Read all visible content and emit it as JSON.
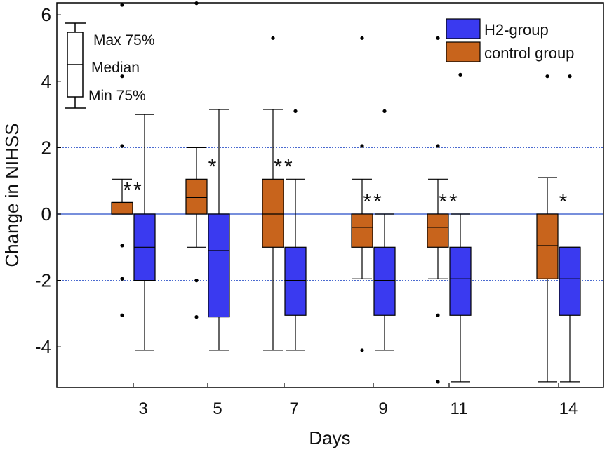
{
  "chart_data": {
    "type": "boxplot",
    "xlabel": "Days",
    "ylabel": "Change in NIHSS",
    "ylim": [
      -5.3,
      6.5
    ],
    "yticks": [
      6,
      4,
      2,
      0,
      -2,
      -4
    ],
    "ytick_labels": [
      "6",
      "4",
      "2",
      "0",
      "-2",
      "-4"
    ],
    "reference_lines": [
      2,
      0,
      -2
    ],
    "colors": {
      "control": "#c8641c",
      "h2": "#3a3af0",
      "ref_line": "#4a6ad0"
    },
    "legend": {
      "position": "top-right",
      "entries": [
        {
          "label": "H2-group",
          "series": "h2"
        },
        {
          "label": "control group",
          "series": "control"
        }
      ]
    },
    "box_key": {
      "max": "Max 75%",
      "median": "Median",
      "min": "Min 75%"
    },
    "groups": [
      {
        "day": "3",
        "significance": "**",
        "control": {
          "whisker_low": 0,
          "q1": 0,
          "median": 0.35,
          "q3": 0.35,
          "whisker_high": 1.05,
          "outliers": [
            6.3,
            4.15,
            2.05,
            -0.95,
            -1.95,
            -3.05
          ]
        },
        "h2": {
          "whisker_low": -4.1,
          "q1": -2.0,
          "median": -1.0,
          "q3": 0,
          "whisker_high": 3.0,
          "outliers": []
        }
      },
      {
        "day": "5",
        "significance": "*",
        "control": {
          "whisker_low": -1.0,
          "q1": 0,
          "median": 0.5,
          "q3": 1.05,
          "whisker_high": 2.0,
          "outliers": [
            6.35,
            -2.0,
            -3.1
          ]
        },
        "h2": {
          "whisker_low": -4.1,
          "q1": -3.1,
          "median": -1.1,
          "q3": 0,
          "whisker_high": 3.15,
          "outliers": []
        }
      },
      {
        "day": "7",
        "significance": "**",
        "control": {
          "whisker_low": -4.1,
          "q1": -1.0,
          "median": 0,
          "q3": 1.05,
          "whisker_high": 3.15,
          "outliers": [
            5.3
          ]
        },
        "h2": {
          "whisker_low": -4.1,
          "q1": -3.05,
          "median": -2.0,
          "q3": -1.0,
          "whisker_high": 1.05,
          "outliers": [
            3.1
          ]
        }
      },
      {
        "day": "9",
        "significance": "**",
        "control": {
          "whisker_low": -1.95,
          "q1": -1.0,
          "median": -0.4,
          "q3": 0,
          "whisker_high": 1.05,
          "outliers": [
            5.3,
            2.05,
            -4.1
          ]
        },
        "h2": {
          "whisker_low": -4.1,
          "q1": -3.05,
          "median": -2.0,
          "q3": -1.0,
          "whisker_high": 0,
          "outliers": [
            3.1
          ]
        }
      },
      {
        "day": "11",
        "significance": "**",
        "control": {
          "whisker_low": -1.95,
          "q1": -1.0,
          "median": -0.4,
          "q3": 0,
          "whisker_high": 1.05,
          "outliers": [
            5.3,
            2.05,
            -3.05,
            -5.05
          ]
        },
        "h2": {
          "whisker_low": -5.05,
          "q1": -3.05,
          "median": -1.95,
          "q3": -1.0,
          "whisker_high": 0,
          "outliers": [
            4.2
          ]
        }
      },
      {
        "day": "14",
        "significance": "*",
        "control": {
          "whisker_low": -5.05,
          "q1": -1.95,
          "median": -0.95,
          "q3": 0,
          "whisker_high": 1.1,
          "outliers": [
            4.15
          ]
        },
        "h2": {
          "whisker_low": -5.05,
          "q1": -3.05,
          "median": -1.95,
          "q3": -1.0,
          "whisker_high": -1.0,
          "outliers": [
            4.15
          ]
        }
      }
    ]
  }
}
